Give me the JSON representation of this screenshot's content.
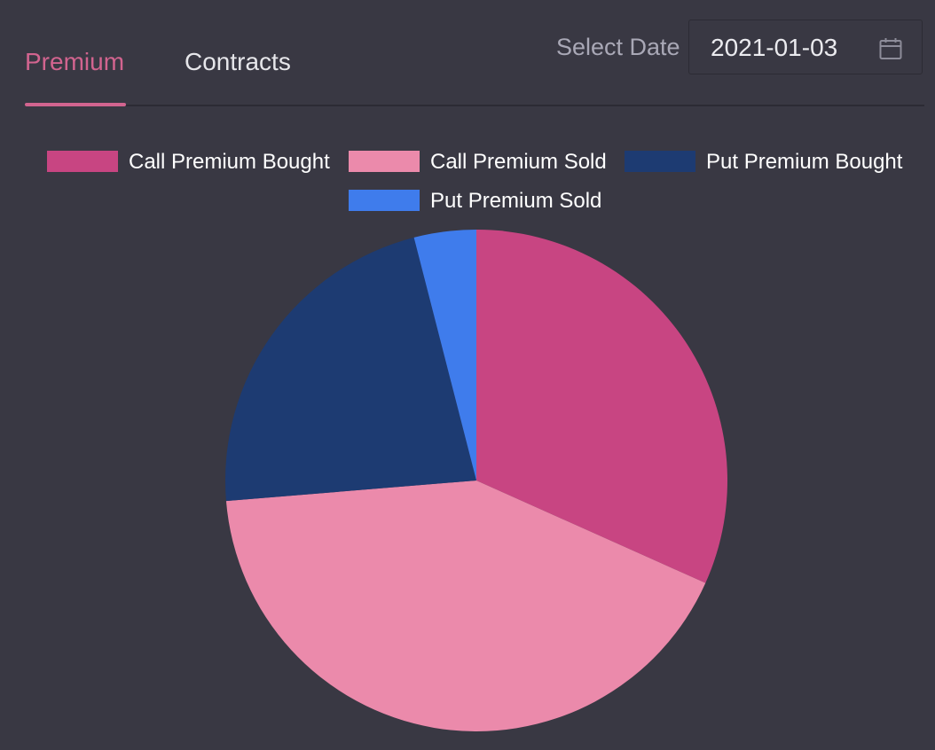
{
  "tabs": [
    {
      "label": "Premium",
      "active": true
    },
    {
      "label": "Contracts",
      "active": false
    }
  ],
  "date_filter": {
    "label": "Select Date",
    "value": "2021-01-03",
    "icon": "calendar-icon"
  },
  "colors": {
    "accent": "#d2648f",
    "background": "#393843"
  },
  "chart_data": {
    "type": "pie",
    "title": "",
    "legend_position": "top",
    "series": [
      {
        "name": "Call Premium Bought",
        "value": 31.7,
        "color": "#c84582"
      },
      {
        "name": "Call Premium Sold",
        "value": 42.0,
        "color": "#eb8aab"
      },
      {
        "name": "Put Premium Bought",
        "value": 22.3,
        "color": "#1d3b72"
      },
      {
        "name": "Put Premium Sold",
        "value": 4.0,
        "color": "#3f7cec"
      }
    ]
  }
}
